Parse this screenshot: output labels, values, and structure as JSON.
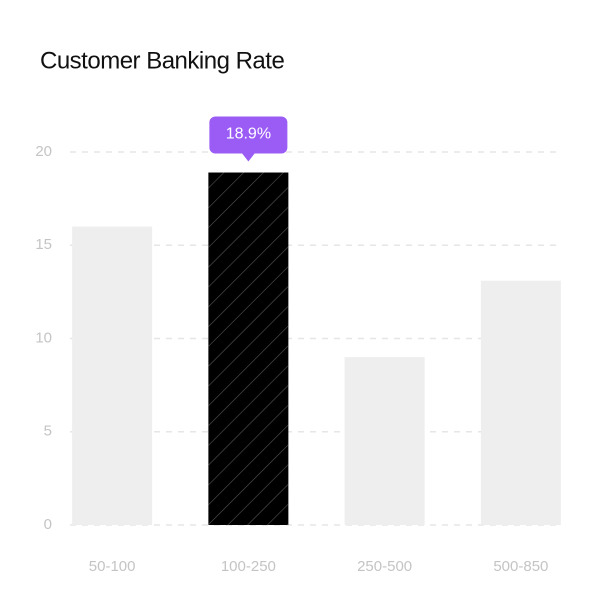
{
  "chart_data": {
    "type": "bar",
    "title": "Customer Banking Rate",
    "categories": [
      "50-100",
      "100-250",
      "250-500",
      "500-850"
    ],
    "values": [
      16,
      18.9,
      9,
      13.1
    ],
    "value_labels": [
      null,
      "18.9%",
      null,
      null
    ],
    "colors": [
      "#eeeeee",
      "#000000",
      "#eeeeee",
      "#eeeeee"
    ],
    "highlight_index": 1,
    "label_color": "#9b5cf6",
    "ylim": [
      0,
      20
    ],
    "yticks": [
      0,
      5,
      10,
      15,
      20
    ],
    "grid": true
  }
}
